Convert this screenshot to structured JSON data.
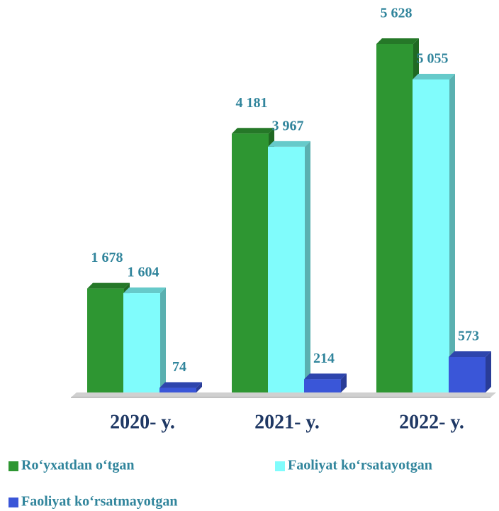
{
  "chart_data": {
    "type": "bar3d",
    "categories": [
      "2020- y.",
      "2021- y.",
      "2022- y."
    ],
    "series": [
      {
        "name": "Ro‘yxatdan o‘tgan",
        "color": "#2e9632",
        "values": [
          1678,
          4181,
          5628
        ],
        "value_labels": [
          "1 678",
          "4 181",
          "5 628"
        ]
      },
      {
        "name": "Faoliyat ko‘rsatayotgan",
        "color": "#80fcfc",
        "values": [
          1604,
          3967,
          5055
        ],
        "value_labels": [
          "1 604",
          "3 967",
          "5 055"
        ]
      },
      {
        "name": "Faoliyat ko‘rsatmayotgan",
        "color": "#3a56d8",
        "values": [
          74,
          214,
          573
        ],
        "value_labels": [
          "74",
          "214",
          "573"
        ]
      }
    ]
  }
}
